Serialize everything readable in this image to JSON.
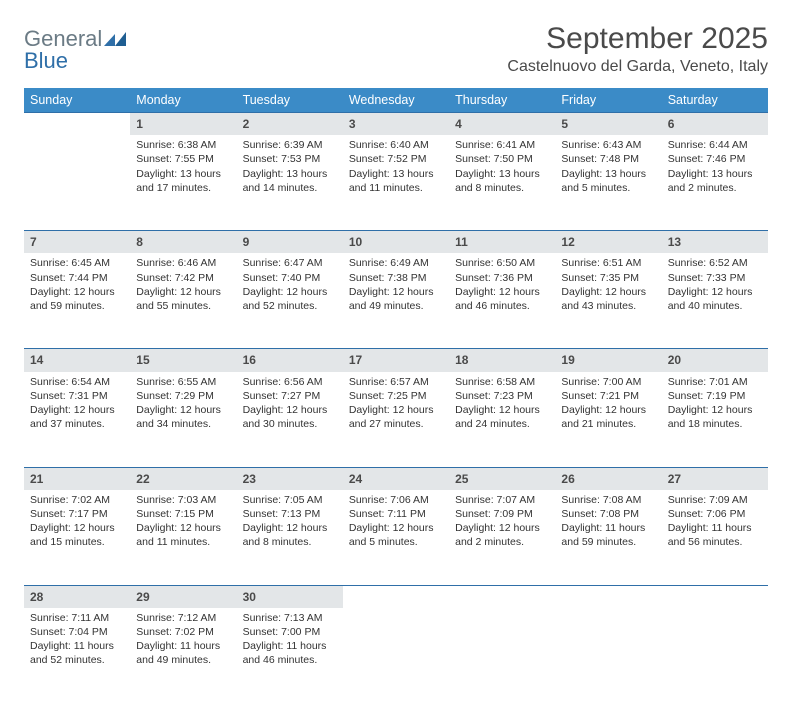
{
  "logo": {
    "word1": "General",
    "word2": "Blue"
  },
  "title": "September 2025",
  "location": "Castelnuovo del Garda, Veneto, Italy",
  "colors": {
    "header_bg": "#3b8bc7",
    "header_text": "#ffffff",
    "daynum_bg": "#e3e6e8",
    "rule": "#2f6fa8",
    "text": "#333333",
    "title": "#4a4a4a"
  },
  "weekdays": [
    "Sunday",
    "Monday",
    "Tuesday",
    "Wednesday",
    "Thursday",
    "Friday",
    "Saturday"
  ],
  "weeks": [
    [
      null,
      {
        "n": "1",
        "sr": "Sunrise: 6:38 AM",
        "ss": "Sunset: 7:55 PM",
        "d1": "Daylight: 13 hours",
        "d2": "and 17 minutes."
      },
      {
        "n": "2",
        "sr": "Sunrise: 6:39 AM",
        "ss": "Sunset: 7:53 PM",
        "d1": "Daylight: 13 hours",
        "d2": "and 14 minutes."
      },
      {
        "n": "3",
        "sr": "Sunrise: 6:40 AM",
        "ss": "Sunset: 7:52 PM",
        "d1": "Daylight: 13 hours",
        "d2": "and 11 minutes."
      },
      {
        "n": "4",
        "sr": "Sunrise: 6:41 AM",
        "ss": "Sunset: 7:50 PM",
        "d1": "Daylight: 13 hours",
        "d2": "and 8 minutes."
      },
      {
        "n": "5",
        "sr": "Sunrise: 6:43 AM",
        "ss": "Sunset: 7:48 PM",
        "d1": "Daylight: 13 hours",
        "d2": "and 5 minutes."
      },
      {
        "n": "6",
        "sr": "Sunrise: 6:44 AM",
        "ss": "Sunset: 7:46 PM",
        "d1": "Daylight: 13 hours",
        "d2": "and 2 minutes."
      }
    ],
    [
      {
        "n": "7",
        "sr": "Sunrise: 6:45 AM",
        "ss": "Sunset: 7:44 PM",
        "d1": "Daylight: 12 hours",
        "d2": "and 59 minutes."
      },
      {
        "n": "8",
        "sr": "Sunrise: 6:46 AM",
        "ss": "Sunset: 7:42 PM",
        "d1": "Daylight: 12 hours",
        "d2": "and 55 minutes."
      },
      {
        "n": "9",
        "sr": "Sunrise: 6:47 AM",
        "ss": "Sunset: 7:40 PM",
        "d1": "Daylight: 12 hours",
        "d2": "and 52 minutes."
      },
      {
        "n": "10",
        "sr": "Sunrise: 6:49 AM",
        "ss": "Sunset: 7:38 PM",
        "d1": "Daylight: 12 hours",
        "d2": "and 49 minutes."
      },
      {
        "n": "11",
        "sr": "Sunrise: 6:50 AM",
        "ss": "Sunset: 7:36 PM",
        "d1": "Daylight: 12 hours",
        "d2": "and 46 minutes."
      },
      {
        "n": "12",
        "sr": "Sunrise: 6:51 AM",
        "ss": "Sunset: 7:35 PM",
        "d1": "Daylight: 12 hours",
        "d2": "and 43 minutes."
      },
      {
        "n": "13",
        "sr": "Sunrise: 6:52 AM",
        "ss": "Sunset: 7:33 PM",
        "d1": "Daylight: 12 hours",
        "d2": "and 40 minutes."
      }
    ],
    [
      {
        "n": "14",
        "sr": "Sunrise: 6:54 AM",
        "ss": "Sunset: 7:31 PM",
        "d1": "Daylight: 12 hours",
        "d2": "and 37 minutes."
      },
      {
        "n": "15",
        "sr": "Sunrise: 6:55 AM",
        "ss": "Sunset: 7:29 PM",
        "d1": "Daylight: 12 hours",
        "d2": "and 34 minutes."
      },
      {
        "n": "16",
        "sr": "Sunrise: 6:56 AM",
        "ss": "Sunset: 7:27 PM",
        "d1": "Daylight: 12 hours",
        "d2": "and 30 minutes."
      },
      {
        "n": "17",
        "sr": "Sunrise: 6:57 AM",
        "ss": "Sunset: 7:25 PM",
        "d1": "Daylight: 12 hours",
        "d2": "and 27 minutes."
      },
      {
        "n": "18",
        "sr": "Sunrise: 6:58 AM",
        "ss": "Sunset: 7:23 PM",
        "d1": "Daylight: 12 hours",
        "d2": "and 24 minutes."
      },
      {
        "n": "19",
        "sr": "Sunrise: 7:00 AM",
        "ss": "Sunset: 7:21 PM",
        "d1": "Daylight: 12 hours",
        "d2": "and 21 minutes."
      },
      {
        "n": "20",
        "sr": "Sunrise: 7:01 AM",
        "ss": "Sunset: 7:19 PM",
        "d1": "Daylight: 12 hours",
        "d2": "and 18 minutes."
      }
    ],
    [
      {
        "n": "21",
        "sr": "Sunrise: 7:02 AM",
        "ss": "Sunset: 7:17 PM",
        "d1": "Daylight: 12 hours",
        "d2": "and 15 minutes."
      },
      {
        "n": "22",
        "sr": "Sunrise: 7:03 AM",
        "ss": "Sunset: 7:15 PM",
        "d1": "Daylight: 12 hours",
        "d2": "and 11 minutes."
      },
      {
        "n": "23",
        "sr": "Sunrise: 7:05 AM",
        "ss": "Sunset: 7:13 PM",
        "d1": "Daylight: 12 hours",
        "d2": "and 8 minutes."
      },
      {
        "n": "24",
        "sr": "Sunrise: 7:06 AM",
        "ss": "Sunset: 7:11 PM",
        "d1": "Daylight: 12 hours",
        "d2": "and 5 minutes."
      },
      {
        "n": "25",
        "sr": "Sunrise: 7:07 AM",
        "ss": "Sunset: 7:09 PM",
        "d1": "Daylight: 12 hours",
        "d2": "and 2 minutes."
      },
      {
        "n": "26",
        "sr": "Sunrise: 7:08 AM",
        "ss": "Sunset: 7:08 PM",
        "d1": "Daylight: 11 hours",
        "d2": "and 59 minutes."
      },
      {
        "n": "27",
        "sr": "Sunrise: 7:09 AM",
        "ss": "Sunset: 7:06 PM",
        "d1": "Daylight: 11 hours",
        "d2": "and 56 minutes."
      }
    ],
    [
      {
        "n": "28",
        "sr": "Sunrise: 7:11 AM",
        "ss": "Sunset: 7:04 PM",
        "d1": "Daylight: 11 hours",
        "d2": "and 52 minutes."
      },
      {
        "n": "29",
        "sr": "Sunrise: 7:12 AM",
        "ss": "Sunset: 7:02 PM",
        "d1": "Daylight: 11 hours",
        "d2": "and 49 minutes."
      },
      {
        "n": "30",
        "sr": "Sunrise: 7:13 AM",
        "ss": "Sunset: 7:00 PM",
        "d1": "Daylight: 11 hours",
        "d2": "and 46 minutes."
      },
      null,
      null,
      null,
      null
    ]
  ]
}
